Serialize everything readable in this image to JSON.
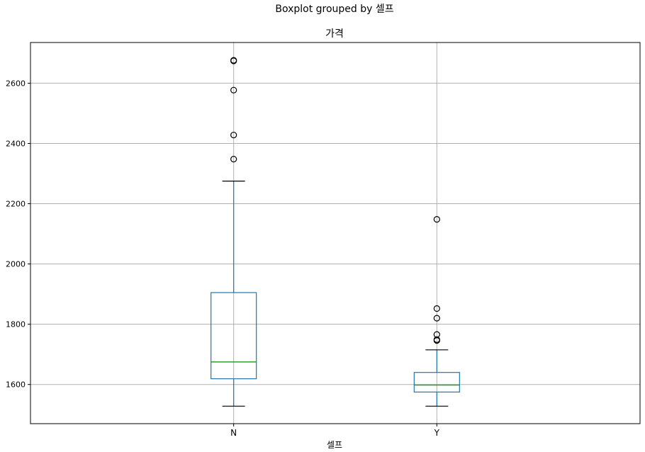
{
  "figure_title": "Boxplot grouped by 셀프",
  "chart_data": {
    "type": "box",
    "title": "가격",
    "xlabel": "셀프",
    "ylabel": "",
    "categories": [
      "N",
      "Y"
    ],
    "ylim": [
      1470,
      2735
    ],
    "yticks": [
      1600,
      1800,
      2000,
      2200,
      2400,
      2600
    ],
    "grid": true,
    "boxes": [
      {
        "category": "N",
        "whisker_low": 1528,
        "q1": 1619,
        "median": 1675,
        "q3": 1905,
        "whisker_high": 2275,
        "outliers": [
          2348,
          2428,
          2577,
          2674,
          2676
        ]
      },
      {
        "category": "Y",
        "whisker_low": 1528,
        "q1": 1575,
        "median": 1598,
        "q3": 1640,
        "whisker_high": 1715,
        "outliers": [
          1746,
          1749,
          1766,
          1820,
          1852,
          2148
        ]
      }
    ],
    "colors": {
      "box": "#1f77b4",
      "median": "#2ca02c",
      "whisker_cap": "#000000",
      "outlier": "#000000",
      "grid": "#b0b0b0"
    }
  }
}
